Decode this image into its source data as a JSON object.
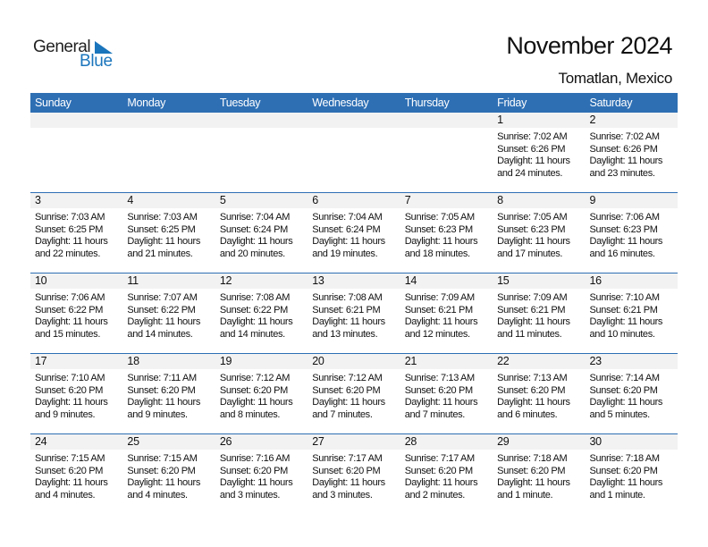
{
  "logo": {
    "word1": "General",
    "word2": "Blue"
  },
  "header": {
    "title": "November 2024",
    "location": "Tomatlan, Mexico"
  },
  "colors": {
    "accent": "#2e6fb4",
    "band": "#f2f2f2",
    "logo_blue": "#1b75bc"
  },
  "weekdays": [
    "Sunday",
    "Monday",
    "Tuesday",
    "Wednesday",
    "Thursday",
    "Friday",
    "Saturday"
  ],
  "weeks": [
    [
      null,
      null,
      null,
      null,
      null,
      {
        "day": "1",
        "sunrise": "Sunrise: 7:02 AM",
        "sunset": "Sunset: 6:26 PM",
        "daylight1": "Daylight: 11 hours",
        "daylight2": "and 24 minutes."
      },
      {
        "day": "2",
        "sunrise": "Sunrise: 7:02 AM",
        "sunset": "Sunset: 6:26 PM",
        "daylight1": "Daylight: 11 hours",
        "daylight2": "and 23 minutes."
      }
    ],
    [
      {
        "day": "3",
        "sunrise": "Sunrise: 7:03 AM",
        "sunset": "Sunset: 6:25 PM",
        "daylight1": "Daylight: 11 hours",
        "daylight2": "and 22 minutes."
      },
      {
        "day": "4",
        "sunrise": "Sunrise: 7:03 AM",
        "sunset": "Sunset: 6:25 PM",
        "daylight1": "Daylight: 11 hours",
        "daylight2": "and 21 minutes."
      },
      {
        "day": "5",
        "sunrise": "Sunrise: 7:04 AM",
        "sunset": "Sunset: 6:24 PM",
        "daylight1": "Daylight: 11 hours",
        "daylight2": "and 20 minutes."
      },
      {
        "day": "6",
        "sunrise": "Sunrise: 7:04 AM",
        "sunset": "Sunset: 6:24 PM",
        "daylight1": "Daylight: 11 hours",
        "daylight2": "and 19 minutes."
      },
      {
        "day": "7",
        "sunrise": "Sunrise: 7:05 AM",
        "sunset": "Sunset: 6:23 PM",
        "daylight1": "Daylight: 11 hours",
        "daylight2": "and 18 minutes."
      },
      {
        "day": "8",
        "sunrise": "Sunrise: 7:05 AM",
        "sunset": "Sunset: 6:23 PM",
        "daylight1": "Daylight: 11 hours",
        "daylight2": "and 17 minutes."
      },
      {
        "day": "9",
        "sunrise": "Sunrise: 7:06 AM",
        "sunset": "Sunset: 6:23 PM",
        "daylight1": "Daylight: 11 hours",
        "daylight2": "and 16 minutes."
      }
    ],
    [
      {
        "day": "10",
        "sunrise": "Sunrise: 7:06 AM",
        "sunset": "Sunset: 6:22 PM",
        "daylight1": "Daylight: 11 hours",
        "daylight2": "and 15 minutes."
      },
      {
        "day": "11",
        "sunrise": "Sunrise: 7:07 AM",
        "sunset": "Sunset: 6:22 PM",
        "daylight1": "Daylight: 11 hours",
        "daylight2": "and 14 minutes."
      },
      {
        "day": "12",
        "sunrise": "Sunrise: 7:08 AM",
        "sunset": "Sunset: 6:22 PM",
        "daylight1": "Daylight: 11 hours",
        "daylight2": "and 14 minutes."
      },
      {
        "day": "13",
        "sunrise": "Sunrise: 7:08 AM",
        "sunset": "Sunset: 6:21 PM",
        "daylight1": "Daylight: 11 hours",
        "daylight2": "and 13 minutes."
      },
      {
        "day": "14",
        "sunrise": "Sunrise: 7:09 AM",
        "sunset": "Sunset: 6:21 PM",
        "daylight1": "Daylight: 11 hours",
        "daylight2": "and 12 minutes."
      },
      {
        "day": "15",
        "sunrise": "Sunrise: 7:09 AM",
        "sunset": "Sunset: 6:21 PM",
        "daylight1": "Daylight: 11 hours",
        "daylight2": "and 11 minutes."
      },
      {
        "day": "16",
        "sunrise": "Sunrise: 7:10 AM",
        "sunset": "Sunset: 6:21 PM",
        "daylight1": "Daylight: 11 hours",
        "daylight2": "and 10 minutes."
      }
    ],
    [
      {
        "day": "17",
        "sunrise": "Sunrise: 7:10 AM",
        "sunset": "Sunset: 6:20 PM",
        "daylight1": "Daylight: 11 hours",
        "daylight2": "and 9 minutes."
      },
      {
        "day": "18",
        "sunrise": "Sunrise: 7:11 AM",
        "sunset": "Sunset: 6:20 PM",
        "daylight1": "Daylight: 11 hours",
        "daylight2": "and 9 minutes."
      },
      {
        "day": "19",
        "sunrise": "Sunrise: 7:12 AM",
        "sunset": "Sunset: 6:20 PM",
        "daylight1": "Daylight: 11 hours",
        "daylight2": "and 8 minutes."
      },
      {
        "day": "20",
        "sunrise": "Sunrise: 7:12 AM",
        "sunset": "Sunset: 6:20 PM",
        "daylight1": "Daylight: 11 hours",
        "daylight2": "and 7 minutes."
      },
      {
        "day": "21",
        "sunrise": "Sunrise: 7:13 AM",
        "sunset": "Sunset: 6:20 PM",
        "daylight1": "Daylight: 11 hours",
        "daylight2": "and 7 minutes."
      },
      {
        "day": "22",
        "sunrise": "Sunrise: 7:13 AM",
        "sunset": "Sunset: 6:20 PM",
        "daylight1": "Daylight: 11 hours",
        "daylight2": "and 6 minutes."
      },
      {
        "day": "23",
        "sunrise": "Sunrise: 7:14 AM",
        "sunset": "Sunset: 6:20 PM",
        "daylight1": "Daylight: 11 hours",
        "daylight2": "and 5 minutes."
      }
    ],
    [
      {
        "day": "24",
        "sunrise": "Sunrise: 7:15 AM",
        "sunset": "Sunset: 6:20 PM",
        "daylight1": "Daylight: 11 hours",
        "daylight2": "and 4 minutes."
      },
      {
        "day": "25",
        "sunrise": "Sunrise: 7:15 AM",
        "sunset": "Sunset: 6:20 PM",
        "daylight1": "Daylight: 11 hours",
        "daylight2": "and 4 minutes."
      },
      {
        "day": "26",
        "sunrise": "Sunrise: 7:16 AM",
        "sunset": "Sunset: 6:20 PM",
        "daylight1": "Daylight: 11 hours",
        "daylight2": "and 3 minutes."
      },
      {
        "day": "27",
        "sunrise": "Sunrise: 7:17 AM",
        "sunset": "Sunset: 6:20 PM",
        "daylight1": "Daylight: 11 hours",
        "daylight2": "and 3 minutes."
      },
      {
        "day": "28",
        "sunrise": "Sunrise: 7:17 AM",
        "sunset": "Sunset: 6:20 PM",
        "daylight1": "Daylight: 11 hours",
        "daylight2": "and 2 minutes."
      },
      {
        "day": "29",
        "sunrise": "Sunrise: 7:18 AM",
        "sunset": "Sunset: 6:20 PM",
        "daylight1": "Daylight: 11 hours",
        "daylight2": "and 1 minute."
      },
      {
        "day": "30",
        "sunrise": "Sunrise: 7:18 AM",
        "sunset": "Sunset: 6:20 PM",
        "daylight1": "Daylight: 11 hours",
        "daylight2": "and 1 minute."
      }
    ]
  ]
}
